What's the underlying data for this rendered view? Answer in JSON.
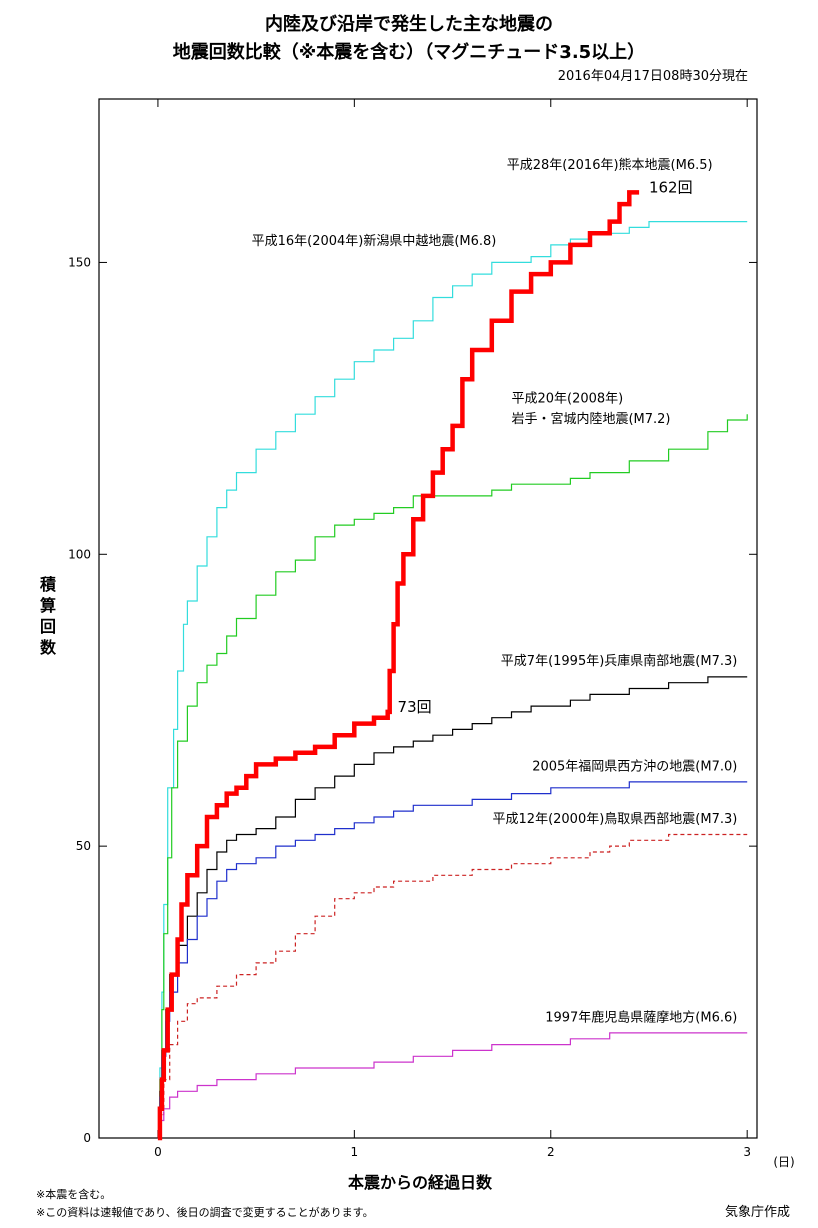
{
  "chart_data": {
    "type": "line",
    "title": [
      "内陸及び沿岸で発生した主な地震の",
      "地震回数比較（※本震を含む）（マグニチュード3.5以上）"
    ],
    "date_note": "2016年04月17日08時30分現在",
    "xlabel": "本震からの経過日数",
    "x_unit": "(日)",
    "ylabel": "積算回数",
    "xlim": [
      -0.3,
      3.05
    ],
    "ylim": [
      0,
      178
    ],
    "xticks": [
      0,
      1,
      2,
      3
    ],
    "yticks": [
      0,
      50,
      100,
      150
    ],
    "grid": false,
    "series": [
      {
        "name": "平成16年(2004年)新潟県中越地震(M6.8)",
        "color": "#33dddd",
        "width": 1.2,
        "dash": "",
        "points": [
          [
            0,
            0
          ],
          [
            0.01,
            12
          ],
          [
            0.02,
            25
          ],
          [
            0.03,
            40
          ],
          [
            0.05,
            60
          ],
          [
            0.08,
            70
          ],
          [
            0.1,
            80
          ],
          [
            0.13,
            88
          ],
          [
            0.15,
            92
          ],
          [
            0.2,
            98
          ],
          [
            0.25,
            103
          ],
          [
            0.3,
            108
          ],
          [
            0.35,
            111
          ],
          [
            0.4,
            114
          ],
          [
            0.5,
            118
          ],
          [
            0.6,
            121
          ],
          [
            0.7,
            124
          ],
          [
            0.8,
            127
          ],
          [
            0.9,
            130
          ],
          [
            1.0,
            133
          ],
          [
            1.1,
            135
          ],
          [
            1.2,
            137
          ],
          [
            1.3,
            140
          ],
          [
            1.4,
            144
          ],
          [
            1.5,
            146
          ],
          [
            1.6,
            148
          ],
          [
            1.7,
            150
          ],
          [
            1.9,
            151
          ],
          [
            2.0,
            153
          ],
          [
            2.1,
            154
          ],
          [
            2.2,
            155
          ],
          [
            2.4,
            156
          ],
          [
            2.5,
            157
          ],
          [
            3.0,
            157
          ]
        ]
      },
      {
        "name": "平成20年(2008年)岩手・宮城内陸地震(M7.2)",
        "color": "#22cc22",
        "width": 1.2,
        "dash": "",
        "points": [
          [
            0,
            0
          ],
          [
            0.01,
            10
          ],
          [
            0.02,
            22
          ],
          [
            0.03,
            35
          ],
          [
            0.05,
            48
          ],
          [
            0.07,
            60
          ],
          [
            0.1,
            68
          ],
          [
            0.15,
            74
          ],
          [
            0.2,
            78
          ],
          [
            0.25,
            81
          ],
          [
            0.3,
            83
          ],
          [
            0.35,
            86
          ],
          [
            0.4,
            89
          ],
          [
            0.5,
            93
          ],
          [
            0.6,
            97
          ],
          [
            0.7,
            99
          ],
          [
            0.8,
            103
          ],
          [
            0.9,
            105
          ],
          [
            1.0,
            106
          ],
          [
            1.1,
            107
          ],
          [
            1.2,
            108
          ],
          [
            1.3,
            110
          ],
          [
            1.4,
            110
          ],
          [
            1.7,
            111
          ],
          [
            1.8,
            112
          ],
          [
            2.1,
            113
          ],
          [
            2.2,
            114
          ],
          [
            2.4,
            116
          ],
          [
            2.6,
            118
          ],
          [
            2.8,
            121
          ],
          [
            2.9,
            123
          ],
          [
            3.0,
            124
          ]
        ]
      },
      {
        "name": "平成7年(1995年)兵庫県南部地震(M7.3)",
        "color": "#000000",
        "width": 1.2,
        "dash": "",
        "points": [
          [
            0,
            0
          ],
          [
            0.01,
            8
          ],
          [
            0.02,
            15
          ],
          [
            0.04,
            22
          ],
          [
            0.06,
            28
          ],
          [
            0.1,
            33
          ],
          [
            0.15,
            38
          ],
          [
            0.2,
            42
          ],
          [
            0.25,
            46
          ],
          [
            0.3,
            49
          ],
          [
            0.35,
            51
          ],
          [
            0.4,
            52
          ],
          [
            0.5,
            53
          ],
          [
            0.6,
            55
          ],
          [
            0.7,
            58
          ],
          [
            0.8,
            60
          ],
          [
            0.9,
            62
          ],
          [
            1.0,
            64
          ],
          [
            1.1,
            66
          ],
          [
            1.2,
            67
          ],
          [
            1.3,
            68
          ],
          [
            1.4,
            69
          ],
          [
            1.5,
            70
          ],
          [
            1.6,
            71
          ],
          [
            1.7,
            72
          ],
          [
            1.8,
            73
          ],
          [
            1.9,
            74
          ],
          [
            2.0,
            74
          ],
          [
            2.1,
            75
          ],
          [
            2.2,
            76
          ],
          [
            2.4,
            77
          ],
          [
            2.6,
            78
          ],
          [
            2.8,
            79
          ],
          [
            3.0,
            79
          ]
        ]
      },
      {
        "name": "2005年福岡県西方沖の地震(M7.0)",
        "color": "#1f2fcc",
        "width": 1.2,
        "dash": "",
        "points": [
          [
            0,
            0
          ],
          [
            0.01,
            7
          ],
          [
            0.02,
            14
          ],
          [
            0.04,
            20
          ],
          [
            0.06,
            25
          ],
          [
            0.1,
            30
          ],
          [
            0.15,
            34
          ],
          [
            0.2,
            38
          ],
          [
            0.25,
            41
          ],
          [
            0.3,
            44
          ],
          [
            0.35,
            46
          ],
          [
            0.4,
            47
          ],
          [
            0.5,
            48
          ],
          [
            0.6,
            50
          ],
          [
            0.7,
            51
          ],
          [
            0.8,
            52
          ],
          [
            0.9,
            53
          ],
          [
            1.0,
            54
          ],
          [
            1.1,
            55
          ],
          [
            1.2,
            56
          ],
          [
            1.3,
            57
          ],
          [
            1.4,
            57
          ],
          [
            1.6,
            58
          ],
          [
            1.8,
            59
          ],
          [
            2.0,
            60
          ],
          [
            2.2,
            60
          ],
          [
            2.4,
            61
          ],
          [
            3.0,
            61
          ]
        ]
      },
      {
        "name": "平成12年(2000年)鳥取県西部地震(M7.3)",
        "color": "#cc2222",
        "width": 1.2,
        "dash": "4,3",
        "points": [
          [
            0,
            0
          ],
          [
            0.01,
            4
          ],
          [
            0.03,
            10
          ],
          [
            0.06,
            16
          ],
          [
            0.1,
            20
          ],
          [
            0.15,
            23
          ],
          [
            0.2,
            24
          ],
          [
            0.3,
            26
          ],
          [
            0.4,
            28
          ],
          [
            0.5,
            30
          ],
          [
            0.6,
            32
          ],
          [
            0.7,
            35
          ],
          [
            0.8,
            38
          ],
          [
            0.9,
            41
          ],
          [
            1.0,
            42
          ],
          [
            1.1,
            43
          ],
          [
            1.2,
            44
          ],
          [
            1.3,
            44
          ],
          [
            1.4,
            45
          ],
          [
            1.6,
            46
          ],
          [
            1.8,
            47
          ],
          [
            2.0,
            48
          ],
          [
            2.2,
            49
          ],
          [
            2.3,
            50
          ],
          [
            2.4,
            51
          ],
          [
            2.6,
            52
          ],
          [
            3.0,
            52
          ]
        ]
      },
      {
        "name": "1997年鹿児島県薩摩地方(M6.6)",
        "color": "#cc33cc",
        "width": 1.2,
        "dash": "",
        "points": [
          [
            0,
            0
          ],
          [
            0.01,
            3
          ],
          [
            0.03,
            5
          ],
          [
            0.06,
            7
          ],
          [
            0.1,
            8
          ],
          [
            0.2,
            9
          ],
          [
            0.3,
            10
          ],
          [
            0.5,
            11
          ],
          [
            0.7,
            12
          ],
          [
            0.9,
            12
          ],
          [
            1.1,
            13
          ],
          [
            1.3,
            14
          ],
          [
            1.5,
            15
          ],
          [
            1.7,
            16
          ],
          [
            1.9,
            16
          ],
          [
            2.1,
            17
          ],
          [
            2.3,
            18
          ],
          [
            2.5,
            18
          ],
          [
            3.0,
            18
          ]
        ]
      },
      {
        "name": "平成28年(2016年)熊本地震(M6.5)",
        "color": "#ff0000",
        "width": 4.5,
        "dash": "",
        "points": [
          [
            0,
            0
          ],
          [
            0.01,
            5
          ],
          [
            0.02,
            10
          ],
          [
            0.03,
            15
          ],
          [
            0.05,
            22
          ],
          [
            0.07,
            28
          ],
          [
            0.1,
            34
          ],
          [
            0.12,
            40
          ],
          [
            0.15,
            45
          ],
          [
            0.2,
            50
          ],
          [
            0.25,
            55
          ],
          [
            0.3,
            57
          ],
          [
            0.35,
            59
          ],
          [
            0.4,
            60
          ],
          [
            0.45,
            62
          ],
          [
            0.5,
            64
          ],
          [
            0.6,
            65
          ],
          [
            0.7,
            66
          ],
          [
            0.8,
            67
          ],
          [
            0.9,
            69
          ],
          [
            1.0,
            71
          ],
          [
            1.1,
            72
          ],
          [
            1.17,
            73
          ],
          [
            1.18,
            80
          ],
          [
            1.2,
            88
          ],
          [
            1.22,
            95
          ],
          [
            1.25,
            100
          ],
          [
            1.3,
            106
          ],
          [
            1.35,
            110
          ],
          [
            1.4,
            114
          ],
          [
            1.45,
            118
          ],
          [
            1.5,
            122
          ],
          [
            1.55,
            130
          ],
          [
            1.6,
            135
          ],
          [
            1.7,
            140
          ],
          [
            1.8,
            145
          ],
          [
            1.9,
            148
          ],
          [
            2.0,
            150
          ],
          [
            2.1,
            153
          ],
          [
            2.2,
            155
          ],
          [
            2.3,
            157
          ],
          [
            2.35,
            160
          ],
          [
            2.4,
            162
          ],
          [
            2.45,
            162
          ]
        ]
      }
    ],
    "labels": [
      {
        "text": "平成28年(2016年)熊本地震(M6.5)",
        "at": [
          2.3,
          166
        ],
        "anchor": "middle",
        "cls": "t-label"
      },
      {
        "text": "平成16年(2004年)新潟県中越地震(M6.8)",
        "at": [
          1.1,
          153
        ],
        "anchor": "middle",
        "cls": "t-label"
      },
      {
        "text": "平成20年(2008年)",
        "at": [
          1.8,
          126
        ],
        "anchor": "start",
        "cls": "t-label"
      },
      {
        "text": "岩手・宮城内陸地震(M7.2)",
        "at": [
          1.8,
          122.5
        ],
        "anchor": "start",
        "cls": "t-label"
      },
      {
        "text": "平成7年(1995年)兵庫県南部地震(M7.3)",
        "at": [
          2.95,
          81
        ],
        "anchor": "end",
        "cls": "t-label"
      },
      {
        "text": "2005年福岡県西方沖の地震(M7.0)",
        "at": [
          2.95,
          63
        ],
        "anchor": "end",
        "cls": "t-label"
      },
      {
        "text": "平成12年(2000年)鳥取県西部地震(M7.3)",
        "at": [
          2.95,
          54
        ],
        "anchor": "end",
        "cls": "t-label"
      },
      {
        "text": "1997年鹿児島県薩摩地方(M6.6)",
        "at": [
          2.95,
          20
        ],
        "anchor": "end",
        "cls": "t-label"
      },
      {
        "text": "162回",
        "at": [
          2.5,
          162
        ],
        "anchor": "start",
        "cls": "t-count"
      },
      {
        "text": "73回",
        "at": [
          1.22,
          73
        ],
        "anchor": "start",
        "cls": "t-count"
      }
    ]
  },
  "footnotes": [
    "※本震を含む。",
    "※この資料は速報値であり、後日の調査で変更することがあります。"
  ],
  "credit": "気象庁作成"
}
